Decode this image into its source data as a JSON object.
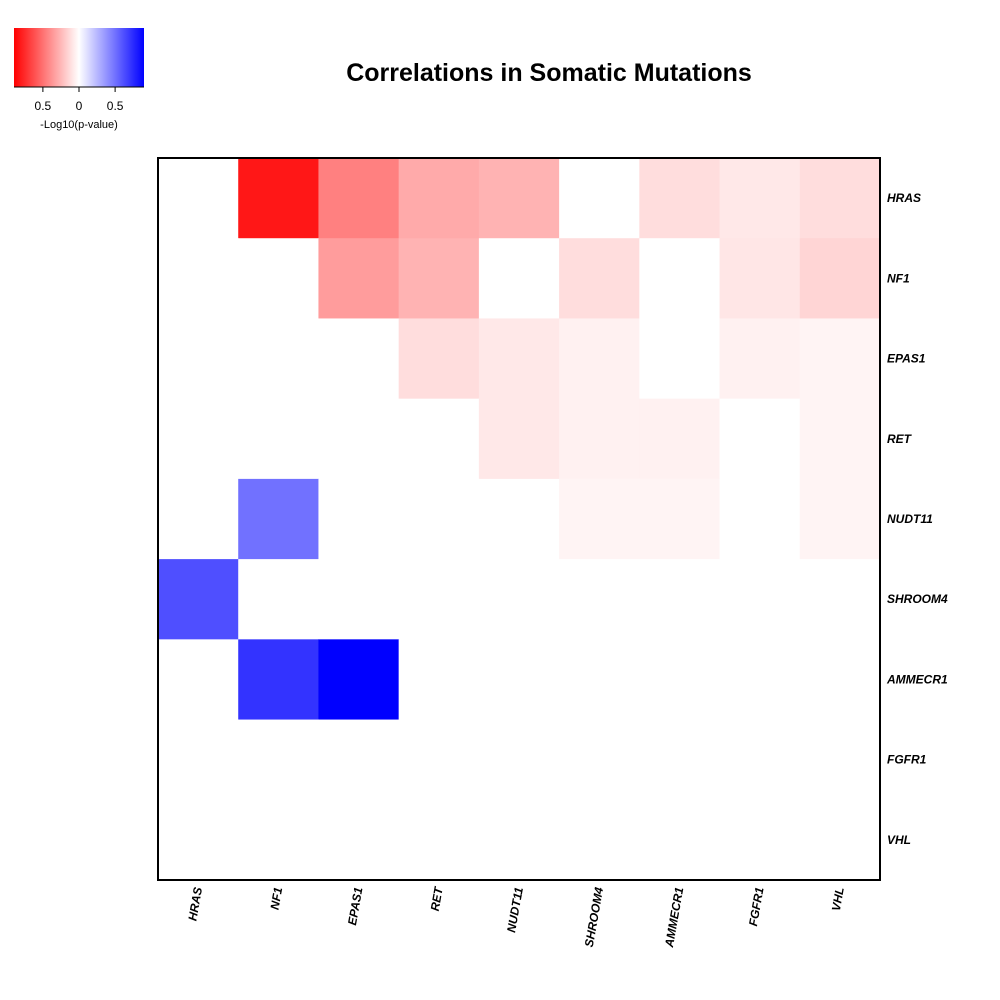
{
  "chart_data": {
    "type": "heatmap",
    "title": "Correlations in Somatic Mutations",
    "row_labels": [
      "HRAS",
      "NF1",
      "EPAS1",
      "RET",
      "NUDT11",
      "SHROOM4",
      "AMMECR1",
      "FGFR1",
      "VHL"
    ],
    "col_labels": [
      "HRAS",
      "NF1",
      "EPAS1",
      "RET",
      "NUDT11",
      "SHROOM4",
      "AMMECR1",
      "FGFR1",
      "VHL"
    ],
    "values": [
      [
        0,
        -0.82,
        -0.45,
        -0.3,
        -0.27,
        0,
        -0.12,
        -0.08,
        -0.12
      ],
      [
        0,
        0,
        -0.35,
        -0.27,
        0,
        -0.12,
        0,
        -0.09,
        -0.15
      ],
      [
        0,
        0,
        0,
        -0.12,
        -0.08,
        -0.05,
        0,
        -0.05,
        -0.04
      ],
      [
        0,
        0,
        0,
        0,
        -0.08,
        -0.05,
        -0.05,
        0,
        -0.04
      ],
      [
        0,
        0.5,
        0,
        0,
        0,
        -0.04,
        -0.04,
        0,
        -0.04
      ],
      [
        0.62,
        0,
        0,
        0,
        0,
        0,
        0,
        0,
        0
      ],
      [
        0,
        0.72,
        0.9,
        0,
        0,
        0,
        0,
        0,
        0
      ],
      [
        0,
        0,
        0,
        0,
        0,
        0,
        0,
        0,
        0
      ],
      [
        0,
        0,
        0,
        0,
        0,
        0,
        0,
        0,
        0
      ]
    ],
    "color_scale": {
      "low_color": "#ff0000",
      "mid_color": "#ffffff",
      "high_color": "#0000ff",
      "range": [
        -0.9,
        0.9
      ],
      "low_is_absolute": true
    },
    "legend": {
      "label": "-Log10(p-value)",
      "ticks": [
        {
          "value": -0.5,
          "label": "0.5"
        },
        {
          "value": 0,
          "label": "0"
        },
        {
          "value": 0.5,
          "label": "0.5"
        }
      ],
      "position": "top-left"
    },
    "xlabel": "",
    "ylabel": ""
  }
}
